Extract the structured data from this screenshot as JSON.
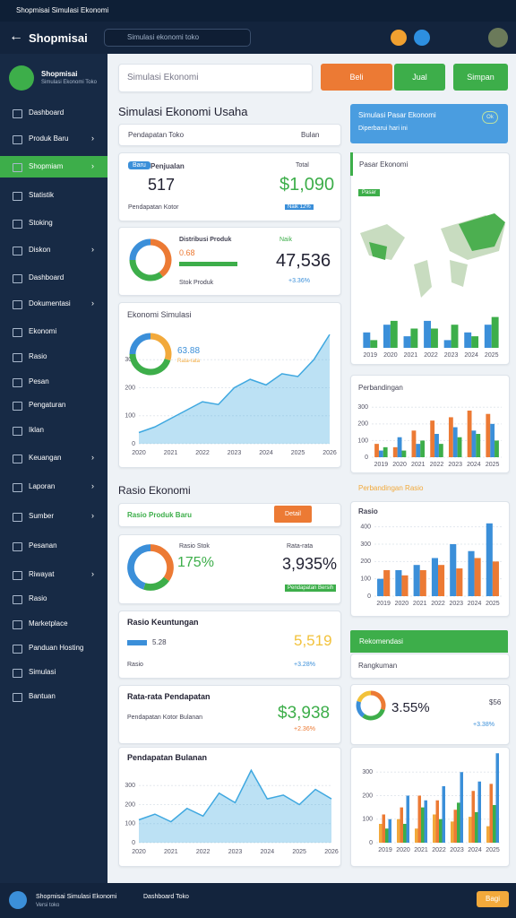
{
  "status_bar": {
    "title": "Shopmisai Simulasi Ekonomi"
  },
  "app_bar": {
    "title": "Shopmisai",
    "search": "Simulasi ekonomi toko"
  },
  "sidebar": {
    "brand": "Shopmisai",
    "brand_sub": "Simulasi Ekonomi Toko",
    "items": [
      "Dashboard",
      "Produk Baru",
      "Shopmiam",
      "Statistik",
      "Stoking",
      "Diskon",
      "Dashboard",
      "Dokumentasi",
      "Ekonomi",
      "Rasio",
      "Pesan",
      "Pengaturan",
      "Iklan",
      "Keuangan",
      "Laporan",
      "Sumber",
      "Pesanan",
      "Riwayat",
      "Rasio",
      "Marketplace",
      "Panduan Hosting",
      "Simulasi",
      "Bantuan"
    ]
  },
  "toolbar": {
    "input": "Simulasi Ekonomi",
    "buttons": [
      "Beli",
      "Jual",
      "Simpan"
    ]
  },
  "page_title": "Simulasi Ekonomi Usaha",
  "filter": {
    "label": "Pendapatan Toko",
    "value": "Bulan"
  },
  "cards": [
    {
      "badge": "Baru",
      "title": "Penjualan",
      "value": "517",
      "amount": "$1,090",
      "sub": "Pendapatan Kotor",
      "note": "Total",
      "tag": "Naik 12%"
    },
    {
      "title": "Distribusi Produk",
      "value": "0.68",
      "amount": "47,536",
      "tag": "Naik",
      "note": "+3.36%",
      "sub": "Stok Produk"
    },
    {
      "title": "Ekonomi Simulasi",
      "value": "63.88",
      "note": "Rata-rata"
    },
    {
      "title": "Rasio Produk Baru",
      "action": "Detail"
    },
    {
      "title": "Rasio Stok",
      "value": "175%",
      "amount": "3,935%",
      "note": "Rata-rata",
      "tag": "Pendapatan Bersih"
    },
    {
      "title": "Rasio Keuntungan",
      "value": "5.28",
      "amount": "5,519",
      "note": "+3.28%",
      "sub": "Rasio"
    },
    {
      "title": "Rata-rata Pendapatan",
      "amount": "$3,938",
      "note": "+2.36%",
      "sub": "Pendapatan Kotor Bulanan"
    },
    {
      "title": "Pendapatan Bulanan"
    }
  ],
  "section_title": "Rasio Ekonomi",
  "right": {
    "banner_title": "Simulasi Pasar Ekonomi",
    "banner_sub": "Diperbarui hari ini",
    "banner_action": "Ok",
    "market": "Pasar Ekonomi",
    "map_badge": "Pasar",
    "compare": "Perbandingan",
    "compare2": "Perbandingan Rasio",
    "ratio": "Rasio",
    "recommend": "Rekomendasi",
    "summary": "Rangkuman",
    "pct": "3.55%",
    "small": "$56",
    "pct_note": "+3.38%"
  },
  "bottom_bar": {
    "title": "Shopmisai Simulasi Ekonomi",
    "sub": "Versi toko",
    "second": "Dashboard Toko",
    "action": "Bagi"
  },
  "chart_data": [
    {
      "type": "area",
      "color": "#3fa8e0",
      "categories": [
        "2020",
        null,
        "2021",
        null,
        "2022",
        null,
        "2023",
        null,
        "2024",
        null,
        "2025",
        null,
        "2026"
      ],
      "values": [
        40,
        60,
        90,
        120,
        150,
        140,
        200,
        230,
        210,
        250,
        240,
        300,
        390
      ],
      "ylim": [
        0,
        400
      ],
      "yticks": [
        0,
        100,
        200,
        300
      ]
    },
    {
      "type": "bar",
      "categories": [
        "2019",
        "2020",
        "2021",
        "2022",
        "2023",
        "2024",
        "2025"
      ],
      "series": [
        {
          "color": "#3b8fd9",
          "values": [
            40,
            60,
            30,
            70,
            20,
            40,
            60
          ]
        },
        {
          "color": "#3dae4a",
          "values": [
            20,
            70,
            50,
            50,
            60,
            30,
            80
          ]
        }
      ],
      "ylim": [
        0,
        100
      ]
    },
    {
      "type": "bar",
      "categories": [
        "2019",
        "2020",
        "2021",
        "2022",
        "2023",
        "2024",
        "2025"
      ],
      "series": [
        {
          "color": "#ec7a34",
          "values": [
            80,
            60,
            160,
            220,
            240,
            280,
            260
          ]
        },
        {
          "color": "#3b8fd9",
          "values": [
            40,
            120,
            80,
            140,
            180,
            160,
            200
          ]
        },
        {
          "color": "#3dae4a",
          "values": [
            60,
            40,
            100,
            80,
            120,
            140,
            100
          ]
        }
      ],
      "ylim": [
        0,
        350
      ],
      "yticks": [
        0,
        100,
        200,
        300
      ]
    },
    {
      "type": "bar",
      "categories": [
        "2019",
        "2020",
        "2021",
        "2022",
        "2023",
        "2024",
        "2025"
      ],
      "series": [
        {
          "color": "#3b8fd9",
          "values": [
            100,
            150,
            180,
            220,
            300,
            260,
            420
          ]
        },
        {
          "color": "#ec7a34",
          "values": [
            150,
            120,
            150,
            180,
            160,
            220,
            200
          ]
        }
      ],
      "ylim": [
        0,
        450
      ],
      "yticks": [
        0,
        100,
        200,
        300,
        400
      ]
    },
    {
      "type": "area",
      "color": "#3fa8e0",
      "categories": [
        "2020",
        null,
        "2021",
        null,
        "2022",
        null,
        "2023",
        null,
        "2024",
        null,
        "2025",
        null,
        "2026"
      ],
      "values": [
        120,
        150,
        110,
        180,
        140,
        260,
        210,
        380,
        230,
        250,
        200,
        280,
        230
      ],
      "ylim": [
        0,
        400
      ],
      "yticks": [
        0,
        100,
        200,
        300
      ]
    },
    {
      "type": "bar",
      "categories": [
        "2019",
        "2020",
        "2021",
        "2022",
        "2023",
        "2024",
        "2025"
      ],
      "series": [
        {
          "color": "#f2a93b",
          "values": [
            80,
            100,
            60,
            120,
            90,
            110,
            70
          ]
        },
        {
          "color": "#ec7a34",
          "values": [
            120,
            150,
            200,
            180,
            140,
            220,
            250
          ]
        },
        {
          "color": "#3dae4a",
          "values": [
            60,
            80,
            150,
            100,
            170,
            130,
            160
          ]
        },
        {
          "color": "#3b8fd9",
          "values": [
            100,
            200,
            180,
            240,
            300,
            260,
            380
          ]
        }
      ],
      "ylim": [
        0,
        400
      ],
      "yticks": [
        0,
        100,
        200,
        300
      ]
    },
    {
      "type": "pie",
      "values": [
        40,
        35,
        25
      ],
      "colors": [
        "#ec7a34",
        "#3dae4a",
        "#3b8fd9"
      ]
    },
    {
      "type": "pie",
      "values": [
        30,
        45,
        25
      ],
      "colors": [
        "#f2a93b",
        "#3dae4a",
        "#3b8fd9"
      ]
    },
    {
      "type": "pie",
      "values": [
        35,
        20,
        45
      ],
      "colors": [
        "#ec7a34",
        "#3dae4a",
        "#3b8fd9"
      ]
    },
    {
      "type": "pie",
      "values": [
        30,
        30,
        20,
        20
      ],
      "colors": [
        "#ec7a34",
        "#3dae4a",
        "#3b8fd9",
        "#f2c23b"
      ]
    }
  ]
}
